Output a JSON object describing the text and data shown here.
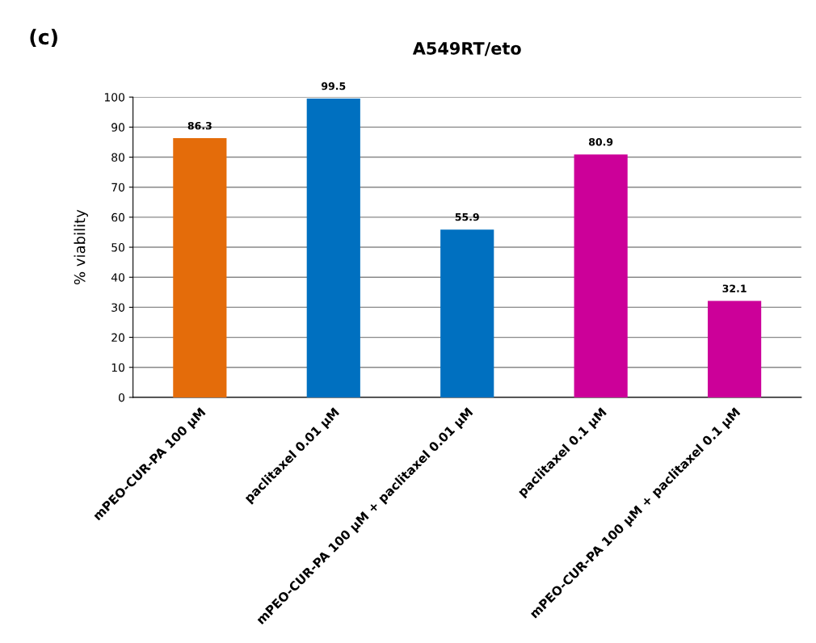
{
  "chart_data": {
    "type": "bar",
    "title": "A549RT/eto",
    "ylabel": "% viability",
    "annotations": [
      "(c)"
    ],
    "categories": [
      "mPEO-CUR-PA 100 µM",
      "paclitaxel 0.01 µM",
      "mPEO-CUR-PA 100 µM + paclitaxel 0.01 µM",
      "paclitaxel 0.1 µM",
      "mPEO-CUR-PA 100 µM + paclitaxel 0.1 µM"
    ],
    "values": [
      86.3,
      99.5,
      55.9,
      80.9,
      32.1
    ],
    "colors": [
      "#e46c0a",
      "#0070c0",
      "#0070c0",
      "#cc0099",
      "#cc0099"
    ],
    "ylim": [
      0,
      100
    ],
    "yticks": [
      0,
      10,
      20,
      30,
      40,
      50,
      60,
      70,
      80,
      90,
      100
    ],
    "grid": "y",
    "data_labels": true
  }
}
